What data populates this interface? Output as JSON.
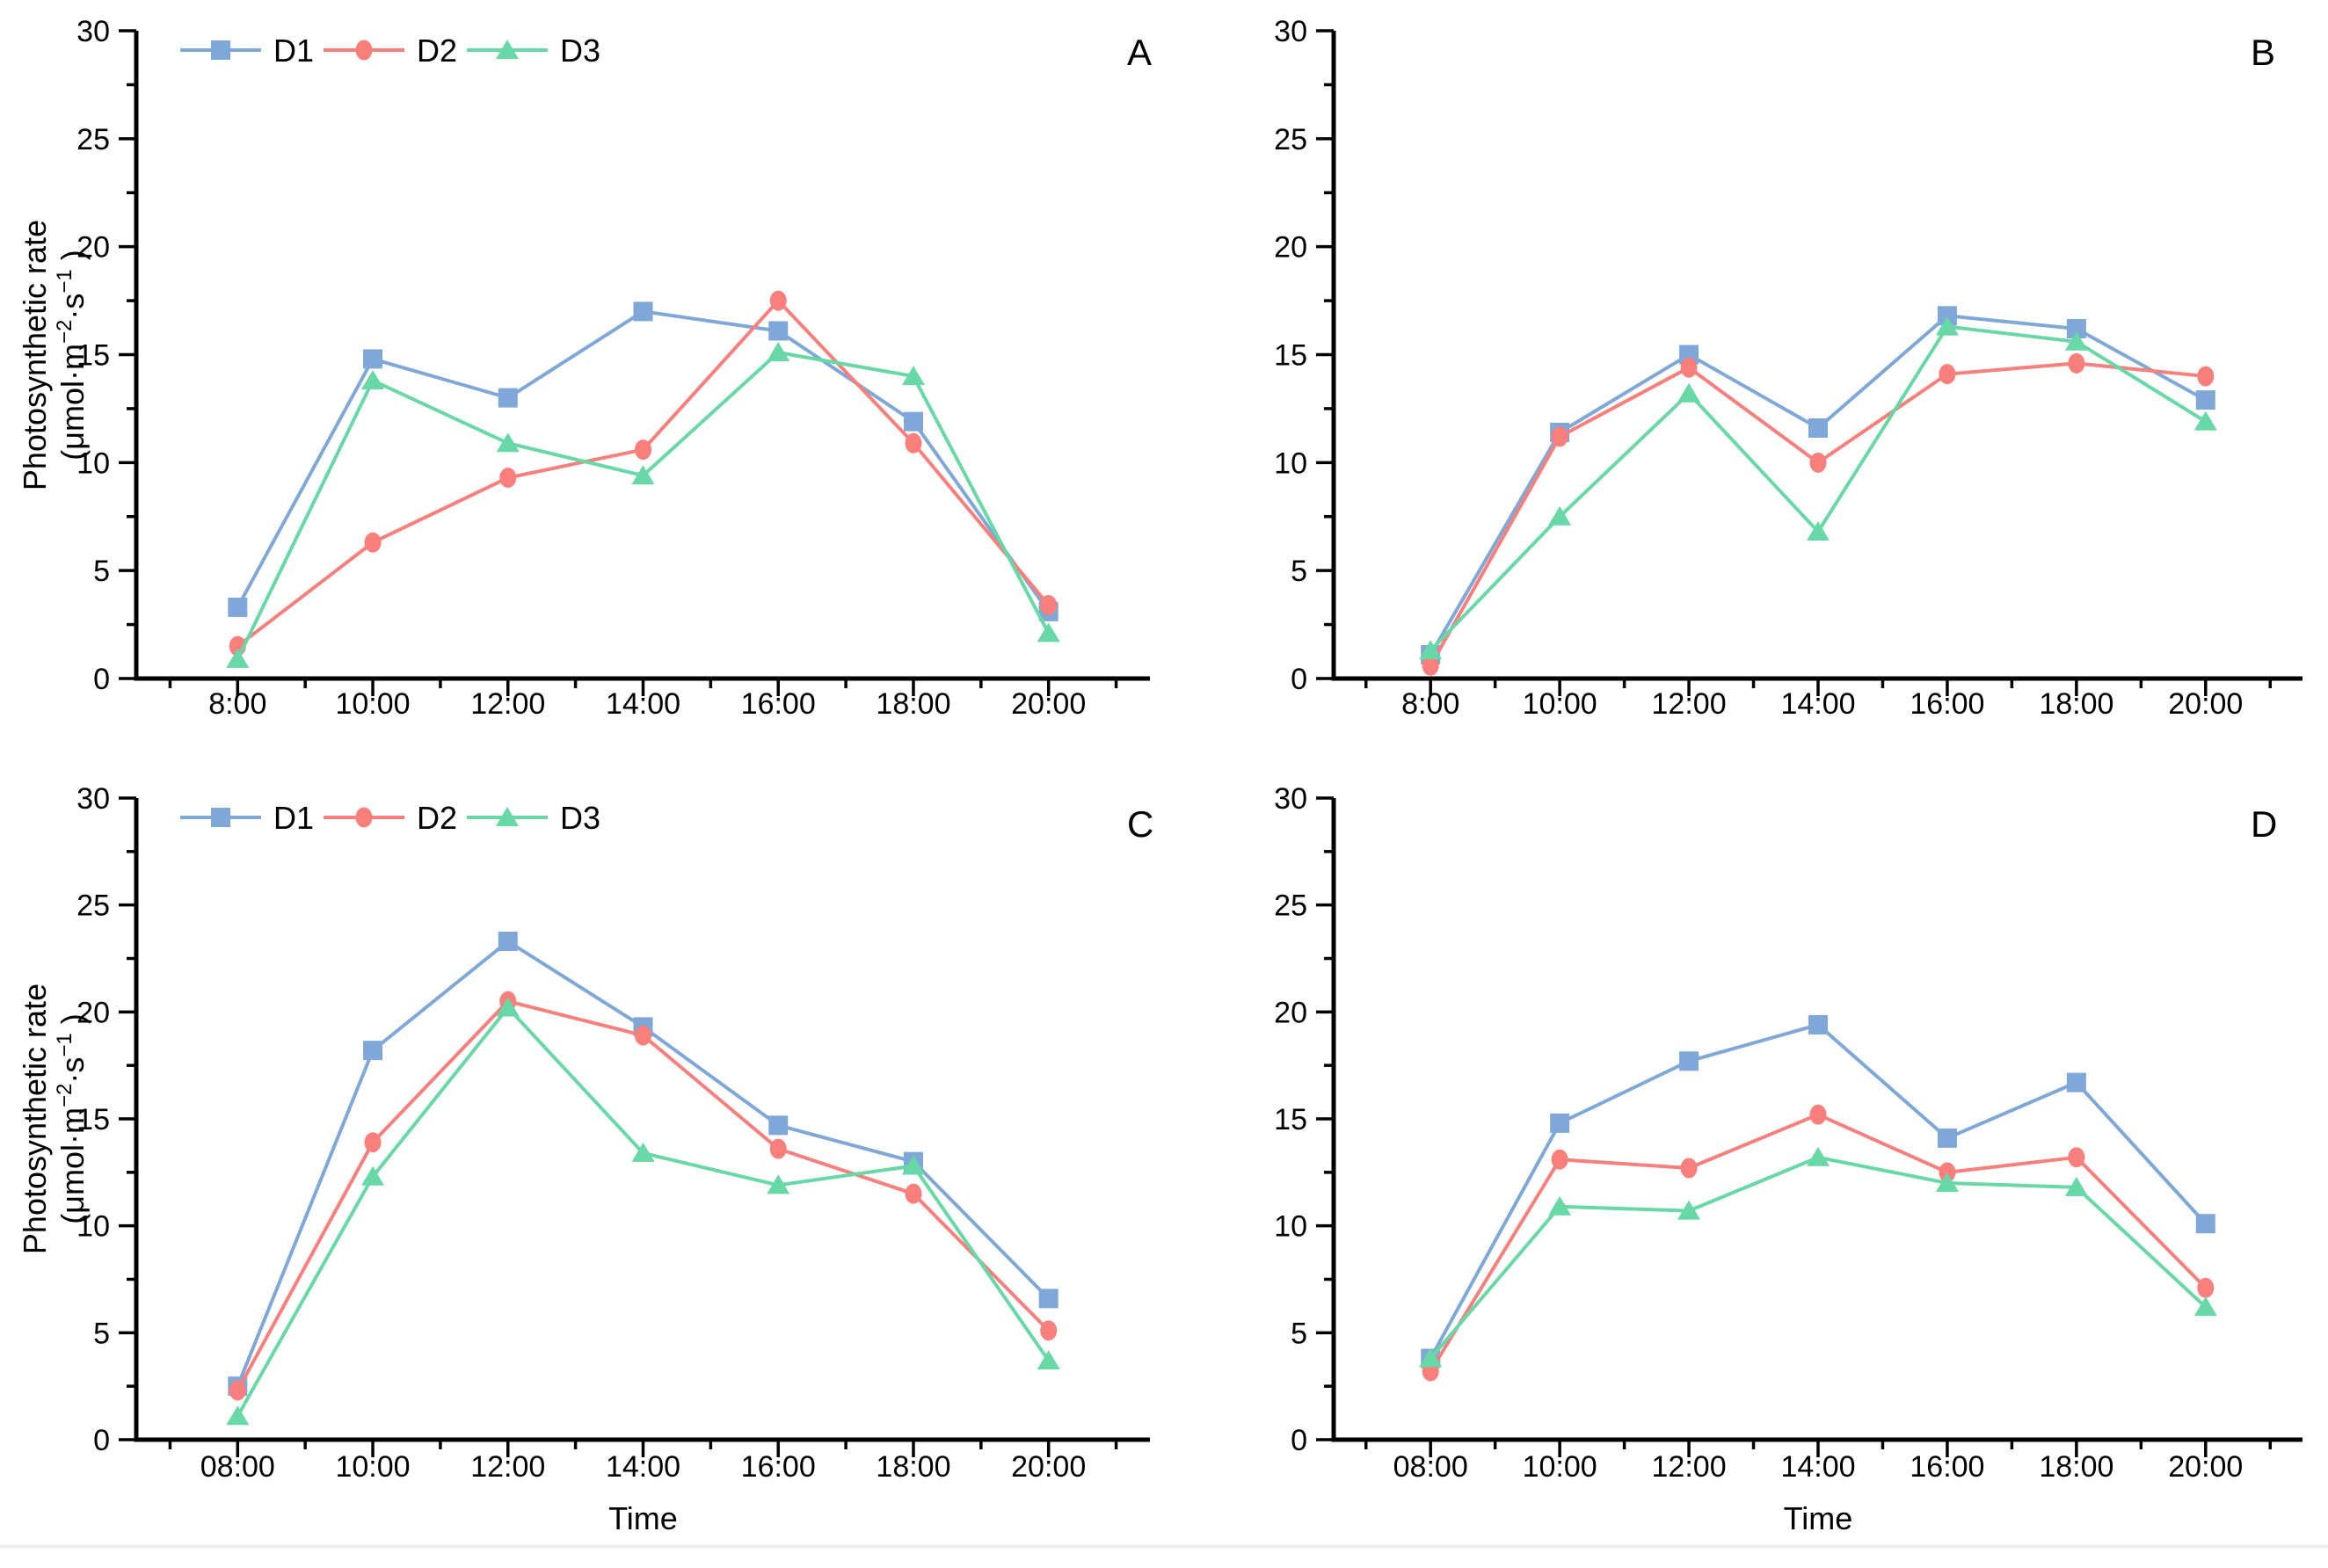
{
  "figure": {
    "ylabel_line1": "Photosynthetic rate",
    "ylabel_unit_parts": [
      {
        "t": "(μmol·m",
        "sup": false
      },
      {
        "t": "−2",
        "sup": true
      },
      {
        "t": "·s",
        "sup": false
      },
      {
        "t": "−1",
        "sup": true
      },
      {
        "t": " )",
        "sup": false
      }
    ],
    "x_axis_title": "Time"
  },
  "legend": {
    "labels": [
      "D1",
      "D2",
      "D3"
    ]
  },
  "colors": {
    "D1": "#7FA8D8",
    "D2": "#F97F7C",
    "D3": "#67D8A6",
    "axis": "#000000"
  },
  "chart_data": [
    {
      "type": "line",
      "panel_label": "A",
      "row": "top",
      "col": "left",
      "show_legend": true,
      "has_ylabel": true,
      "xlabel": "",
      "ylim": [
        0,
        30
      ],
      "yticks": [
        0,
        5,
        10,
        15,
        20,
        25,
        30
      ],
      "yminor_step": 2.5,
      "x_labels": [
        "8:00",
        "10:00",
        "12:00",
        "14:00",
        "16:00",
        "18:00",
        "20:00"
      ],
      "series": [
        {
          "name": "D1",
          "marker": "square",
          "values": [
            3.3,
            14.8,
            13.0,
            17.0,
            16.1,
            11.9,
            3.1
          ]
        },
        {
          "name": "D2",
          "marker": "circle",
          "values": [
            1.5,
            6.3,
            9.3,
            10.6,
            17.5,
            10.9,
            3.4
          ]
        },
        {
          "name": "D3",
          "marker": "triangle",
          "values": [
            0.9,
            13.8,
            10.9,
            9.4,
            15.1,
            14.0,
            2.1
          ]
        }
      ]
    },
    {
      "type": "line",
      "panel_label": "B",
      "row": "top",
      "col": "right",
      "show_legend": false,
      "has_ylabel": false,
      "xlabel": "",
      "ylim": [
        0,
        30
      ],
      "yticks": [
        0,
        5,
        10,
        15,
        20,
        25,
        30
      ],
      "yminor_step": 2.5,
      "x_labels": [
        "8:00",
        "10:00",
        "12:00",
        "14:00",
        "16:00",
        "18:00",
        "20:00"
      ],
      "series": [
        {
          "name": "D1",
          "marker": "square",
          "values": [
            1.1,
            11.4,
            15.0,
            11.6,
            16.8,
            16.2,
            12.9
          ]
        },
        {
          "name": "D2",
          "marker": "circle",
          "values": [
            0.6,
            11.2,
            14.4,
            10.0,
            14.1,
            14.6,
            14.0
          ]
        },
        {
          "name": "D3",
          "marker": "triangle",
          "values": [
            1.3,
            7.5,
            13.2,
            6.8,
            16.3,
            15.6,
            11.9
          ]
        }
      ]
    },
    {
      "type": "line",
      "panel_label": "C",
      "row": "bottom",
      "col": "left",
      "show_legend": true,
      "has_ylabel": true,
      "xlabel": "Time",
      "ylim": [
        0,
        30
      ],
      "yticks": [
        0,
        5,
        10,
        15,
        20,
        25,
        30
      ],
      "yminor_step": 2.5,
      "x_labels": [
        "08:00",
        "10:00",
        "12:00",
        "14:00",
        "16:00",
        "18:00",
        "20:00"
      ],
      "series": [
        {
          "name": "D1",
          "marker": "square",
          "values": [
            2.5,
            18.2,
            23.3,
            19.3,
            14.7,
            13.0,
            6.6
          ]
        },
        {
          "name": "D2",
          "marker": "circle",
          "values": [
            2.3,
            13.9,
            20.5,
            18.9,
            13.6,
            11.5,
            5.1
          ]
        },
        {
          "name": "D3",
          "marker": "triangle",
          "values": [
            1.1,
            12.3,
            20.2,
            13.4,
            11.9,
            12.8,
            3.7
          ]
        }
      ]
    },
    {
      "type": "line",
      "panel_label": "D",
      "row": "bottom",
      "col": "right",
      "show_legend": false,
      "has_ylabel": false,
      "xlabel": "Time",
      "ylim": [
        0,
        30
      ],
      "yticks": [
        0,
        5,
        10,
        15,
        20,
        25,
        30
      ],
      "yminor_step": 2.5,
      "x_labels": [
        "08:00",
        "10:00",
        "12:00",
        "14:00",
        "16:00",
        "18:00",
        "20:00"
      ],
      "series": [
        {
          "name": "D1",
          "marker": "square",
          "values": [
            3.8,
            14.8,
            17.7,
            19.4,
            14.1,
            16.7,
            10.1
          ]
        },
        {
          "name": "D2",
          "marker": "circle",
          "values": [
            3.2,
            13.1,
            12.7,
            15.2,
            12.5,
            13.2,
            7.1
          ]
        },
        {
          "name": "D3",
          "marker": "triangle",
          "values": [
            3.8,
            10.9,
            10.7,
            13.2,
            12.0,
            11.8,
            6.2
          ]
        }
      ]
    }
  ]
}
